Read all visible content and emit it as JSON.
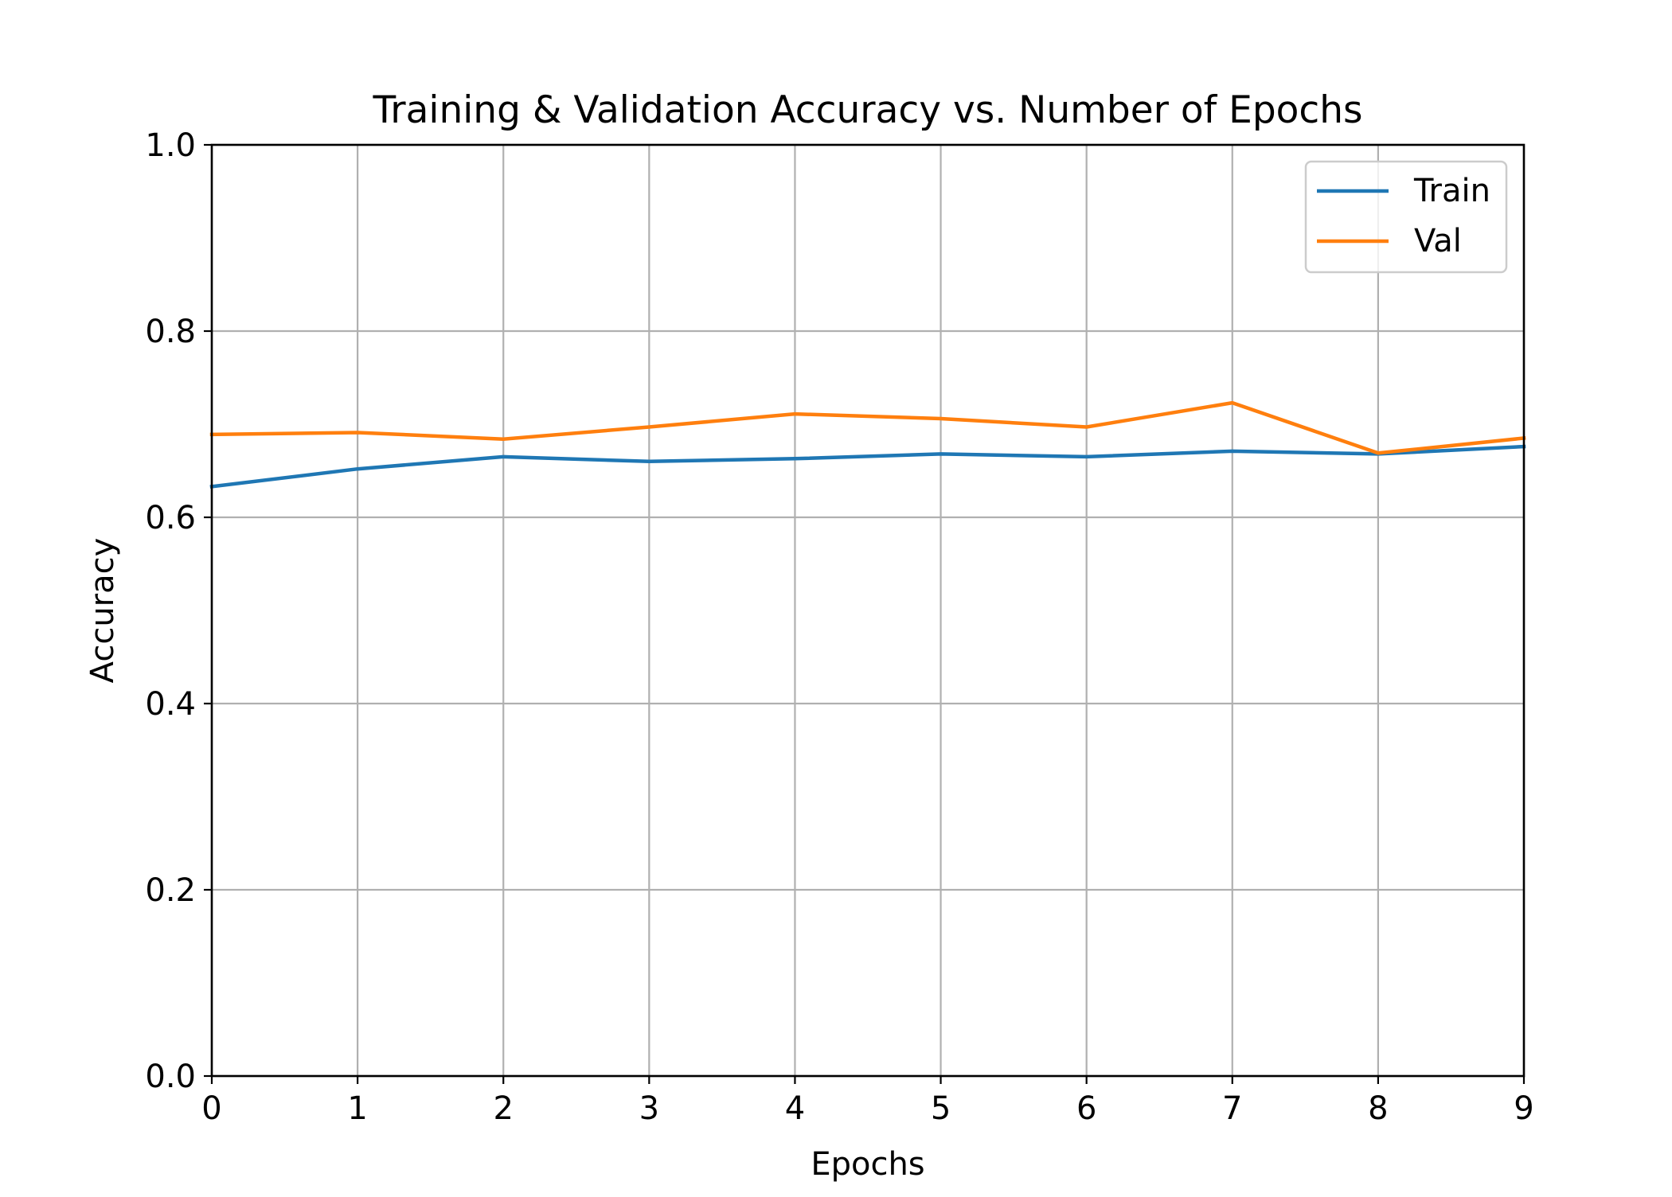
{
  "chart_data": {
    "type": "line",
    "title": "Training & Validation Accuracy vs. Number of Epochs",
    "xlabel": "Epochs",
    "ylabel": "Accuracy",
    "x": [
      0,
      1,
      2,
      3,
      4,
      5,
      6,
      7,
      8,
      9
    ],
    "xlim": [
      0,
      9
    ],
    "ylim": [
      0.0,
      1.0
    ],
    "xticks": [
      "0",
      "1",
      "2",
      "3",
      "4",
      "5",
      "6",
      "7",
      "8",
      "9"
    ],
    "yticks": [
      "0.0",
      "0.2",
      "0.4",
      "0.6",
      "0.8",
      "1.0"
    ],
    "grid": true,
    "legend_position": "top-right",
    "series": [
      {
        "name": "Train",
        "color": "#1f77b4",
        "values": [
          0.633,
          0.652,
          0.665,
          0.66,
          0.663,
          0.668,
          0.665,
          0.671,
          0.668,
          0.676
        ]
      },
      {
        "name": "Val",
        "color": "#ff7f0e",
        "values": [
          0.689,
          0.691,
          0.684,
          0.697,
          0.711,
          0.706,
          0.697,
          0.723,
          0.669,
          0.685
        ]
      }
    ]
  }
}
